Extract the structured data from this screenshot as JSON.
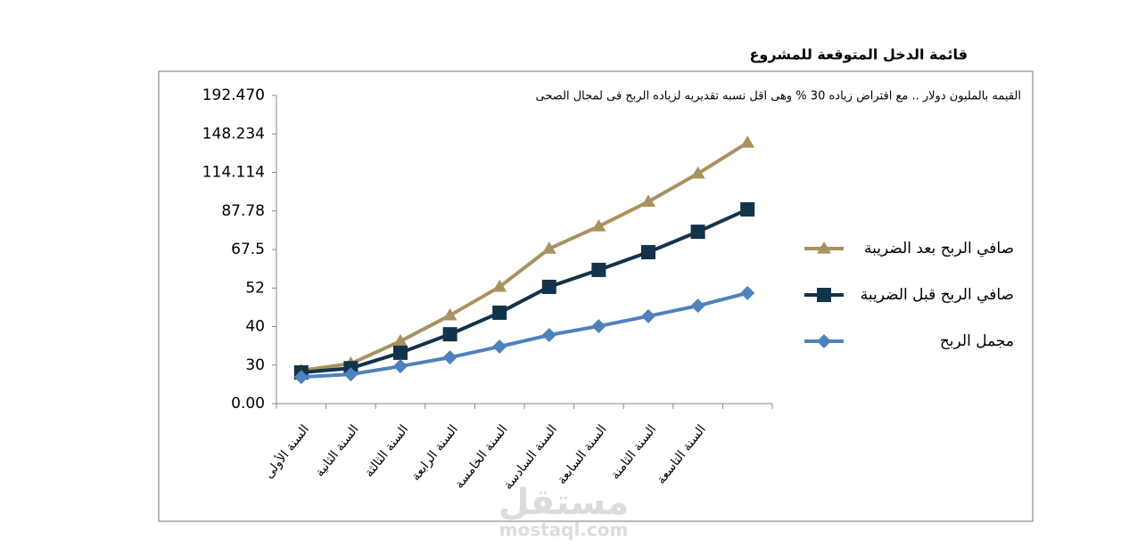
{
  "chart_data": {
    "type": "line",
    "title": "قائمة الدخل المتوقعة للمشروع",
    "annotation": "القيمه بالمليون دولار .. مع افتراض زياده 30 % وهى اقل نسبه تقديريه لزياده الربح فى لمجال الصحى",
    "watermark": [
      "مستقل",
      "mostaql.com"
    ],
    "categories": [
      "السنة الأولى",
      "السنة الثانية",
      "السنة الثالثة",
      "السنة الرابعة",
      "السنة الخامسة",
      "السنة السادسة",
      "السنة السابعة",
      "السنة الثامنة",
      "السنة التاسعة",
      null
    ],
    "ylim": [
      0,
      8
    ],
    "yticks": [
      {
        "value": 0,
        "label": "0.00"
      },
      {
        "value": 1,
        "label": "30"
      },
      {
        "value": 2,
        "label": "40"
      },
      {
        "value": 3,
        "label": "52"
      },
      {
        "value": 4,
        "label": "67.5"
      },
      {
        "value": 5,
        "label": "87.78"
      },
      {
        "value": 6,
        "label": "114.114"
      },
      {
        "value": 7,
        "label": "148.234"
      },
      {
        "value": 8,
        "label": "192.470"
      }
    ],
    "grid": false,
    "legend": "right",
    "series": [
      {
        "name": "صافي الربح بعد الضريبة",
        "color": "#a8925f",
        "marker": "triangle",
        "values": [
          0.86,
          1.04,
          1.62,
          2.29,
          3.03,
          4.02,
          4.6,
          5.24,
          5.97,
          6.77
        ]
      },
      {
        "name": "صافي الربح قبل الضريبة",
        "color": "#12334a",
        "marker": "square",
        "values": [
          0.81,
          0.92,
          1.32,
          1.8,
          2.36,
          3.03,
          3.47,
          3.93,
          4.46,
          5.04
        ]
      },
      {
        "name": "مجمل الربح",
        "color": "#4f81bd",
        "marker": "diamond",
        "values": [
          0.69,
          0.76,
          0.97,
          1.2,
          1.48,
          1.78,
          2.01,
          2.27,
          2.54,
          2.87
        ]
      }
    ]
  }
}
